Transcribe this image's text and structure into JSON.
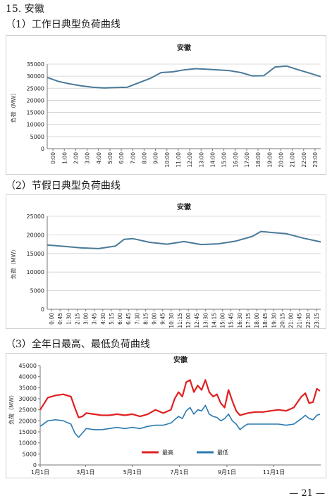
{
  "section": {
    "title": "15. 安徽"
  },
  "footer": {
    "page": "— 21 —"
  },
  "chart_data": [
    {
      "type": "line",
      "heading": "（1）工作日典型负荷曲线",
      "title": "安徽",
      "ylabel": "负荷（MW）",
      "ylim": [
        0,
        35000
      ],
      "yticks": [
        0,
        5000,
        10000,
        15000,
        20000,
        25000,
        30000,
        35000
      ],
      "categories": [
        "0:00",
        "1:00",
        "2:00",
        "3:00",
        "4:00",
        "5:00",
        "6:00",
        "7:00",
        "8:00",
        "9:00",
        "10:00",
        "11:00",
        "12:00",
        "13:00",
        "14:00",
        "15:00",
        "16:00",
        "17:00",
        "18:00",
        "19:00",
        "20:00",
        "21:00",
        "22:00",
        "23:00"
      ],
      "x": [
        0,
        1,
        2,
        3,
        4,
        5,
        6,
        7,
        8,
        9,
        10,
        11,
        12,
        13,
        14,
        15,
        16,
        17,
        18,
        19,
        20,
        21,
        22,
        23,
        24
      ],
      "values": [
        29500,
        27800,
        26800,
        26000,
        25400,
        25100,
        25300,
        25400,
        27200,
        29000,
        31500,
        31800,
        32600,
        33100,
        32900,
        32600,
        32300,
        31500,
        30100,
        30200,
        33800,
        34200,
        32700,
        31300,
        29800
      ],
      "grid": true,
      "color": "#4a7a99"
    },
    {
      "type": "line",
      "heading": "（2）节假日典型负荷曲线",
      "title": "安徽",
      "ylabel": "负荷（MW）",
      "ylim": [
        0,
        25000
      ],
      "yticks": [
        0,
        5000,
        10000,
        15000,
        20000,
        25000
      ],
      "categories": [
        "0:00",
        "0:45",
        "1:30",
        "2:15",
        "3:00",
        "3:45",
        "4:30",
        "5:15",
        "6:00",
        "6:45",
        "7:30",
        "8:15",
        "9:00",
        "9:45",
        "10:30",
        "11:15",
        "12:00",
        "12:45",
        "13:30",
        "14:15",
        "15:00",
        "15:45",
        "16:30",
        "17:15",
        "18:00",
        "18:45",
        "19:30",
        "20:15",
        "21:00",
        "21:45",
        "22:30",
        "23:15"
      ],
      "x": [
        0,
        1.5,
        3,
        4.5,
        6,
        6.75,
        7.5,
        9,
        10.5,
        12,
        13.5,
        15,
        16.5,
        18,
        18.75,
        19.5,
        21,
        22.5,
        24
      ],
      "values": [
        17300,
        16900,
        16500,
        16300,
        17000,
        18800,
        19000,
        18000,
        17500,
        18200,
        17400,
        17600,
        18300,
        19600,
        20900,
        20700,
        20300,
        19100,
        18100
      ],
      "grid": true,
      "color": "#4a7a99"
    },
    {
      "type": "line",
      "heading": "（3）全年日最高、最低负荷曲线",
      "title": "安徽",
      "ylabel": "负荷（MW）",
      "ylim": [
        0,
        45000
      ],
      "yticks": [
        0,
        5000,
        10000,
        15000,
        20000,
        25000,
        30000,
        35000,
        40000,
        45000
      ],
      "categories": [
        "1月1日",
        "3月1日",
        "5月1日",
        "7月1日",
        "9月1日",
        "11月1日"
      ],
      "category_days": [
        0,
        59,
        120,
        181,
        243,
        304
      ],
      "x": [
        0,
        10,
        20,
        30,
        40,
        45,
        50,
        55,
        60,
        70,
        80,
        90,
        100,
        110,
        120,
        130,
        140,
        150,
        160,
        170,
        175,
        180,
        185,
        190,
        195,
        200,
        205,
        210,
        215,
        220,
        225,
        230,
        235,
        240,
        245,
        250,
        255,
        260,
        265,
        270,
        280,
        290,
        300,
        310,
        320,
        330,
        340,
        345,
        350,
        355,
        360,
        364
      ],
      "legend_position": "bottom",
      "series": [
        {
          "name": "最高",
          "color": "#e02020",
          "values": [
            25000,
            30500,
            31500,
            32000,
            31000,
            26000,
            21500,
            22000,
            23500,
            23000,
            22500,
            22500,
            23000,
            22500,
            23000,
            22000,
            23000,
            25000,
            23500,
            25000,
            30000,
            33000,
            31000,
            37500,
            38500,
            33000,
            36000,
            34000,
            38500,
            33000,
            31000,
            32000,
            28000,
            26000,
            34000,
            29000,
            24500,
            22500,
            23000,
            23500,
            24000,
            24000,
            24500,
            25000,
            24500,
            26000,
            31000,
            32500,
            28000,
            28500,
            34500,
            33500
          ]
        },
        {
          "name": "最低",
          "color": "#2a7ab0",
          "values": [
            17500,
            20000,
            20500,
            20000,
            18500,
            14500,
            12500,
            14500,
            16500,
            16000,
            16000,
            16500,
            17000,
            16500,
            17000,
            16500,
            17500,
            18000,
            18000,
            19000,
            20500,
            22000,
            21000,
            24500,
            26000,
            23000,
            25000,
            24500,
            27000,
            23000,
            22000,
            21500,
            20000,
            21000,
            23000,
            20000,
            18500,
            16000,
            17500,
            18500,
            18500,
            18500,
            18500,
            18500,
            18000,
            18500,
            21000,
            22500,
            21000,
            20500,
            22500,
            23000
          ]
        }
      ],
      "grid": false
    }
  ]
}
